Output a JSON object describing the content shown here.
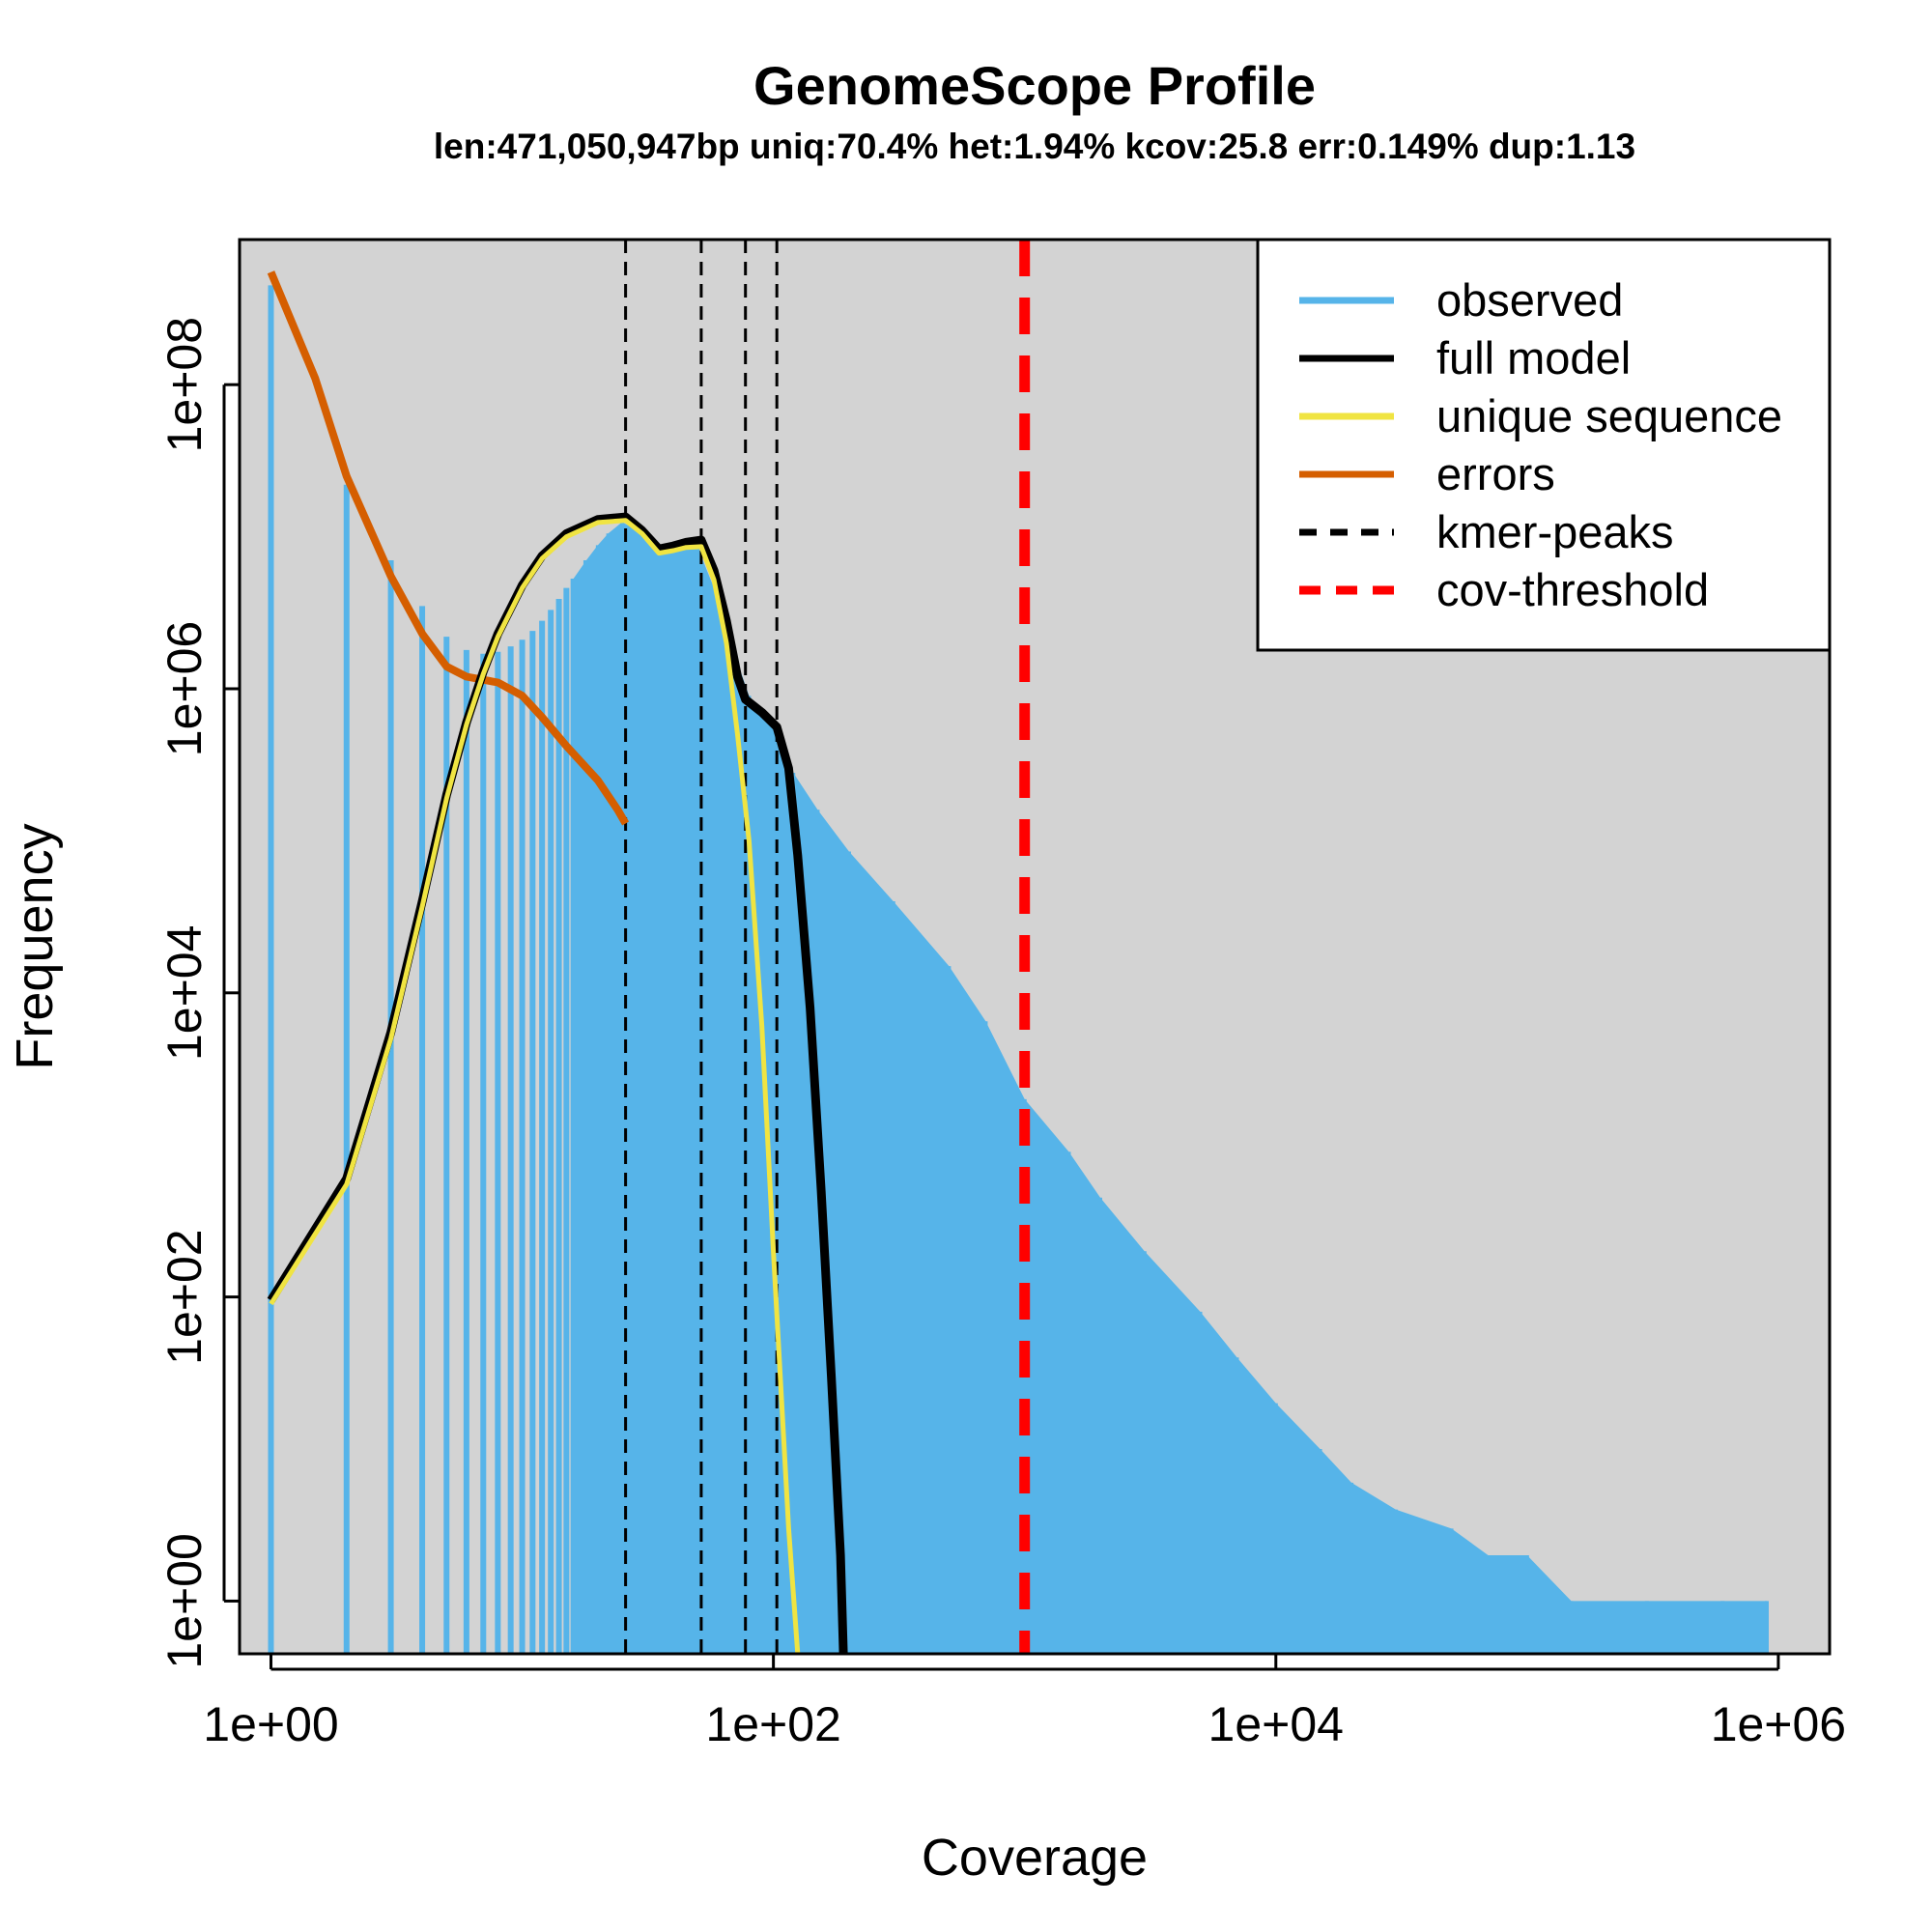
{
  "chart_data": {
    "type": "bar",
    "title": "GenomeScope Profile",
    "subtitle": "len:471,050,947bp uniq:70.4% het:1.94% kcov:25.8 err:0.149% dup:1.13",
    "xlabel": "Coverage",
    "ylabel": "Frequency",
    "x_scale": "log10",
    "y_scale": "log10",
    "xlim": [
      0.75,
      1600000
    ],
    "ylim": [
      0.45,
      900000000
    ],
    "x_ticks": [
      "1e+00",
      "1e+02",
      "1e+04",
      "1e+06"
    ],
    "x_tick_values": [
      1,
      100,
      10000,
      1000000
    ],
    "y_ticks": [
      "1e+00",
      "1e+02",
      "1e+04",
      "1e+06",
      "1e+08"
    ],
    "y_tick_values": [
      1,
      100,
      10000,
      1000000,
      100000000
    ],
    "background": "#d3d3d3",
    "legend_position": "top-right",
    "legend": [
      {
        "label": "observed",
        "color": "#56b4e9",
        "style": "solid"
      },
      {
        "label": "full model",
        "color": "#000000",
        "style": "solid"
      },
      {
        "label": "unique sequence",
        "color": "#f0e442",
        "style": "solid"
      },
      {
        "label": "errors",
        "color": "#d55e00",
        "style": "solid"
      },
      {
        "label": "kmer-peaks",
        "color": "#000000",
        "style": "dashed"
      },
      {
        "label": "cov-threshold",
        "color": "#ff0000",
        "style": "dashed"
      }
    ],
    "observed": {
      "name": "observed",
      "color": "#56b4e9",
      "points": [
        [
          1,
          450000000
        ],
        [
          2,
          22000000
        ],
        [
          3,
          7000000
        ],
        [
          4,
          3500000
        ],
        [
          5,
          2200000
        ],
        [
          6,
          1800000
        ],
        [
          7,
          1700000
        ],
        [
          8,
          1750000
        ],
        [
          9,
          1900000
        ],
        [
          10,
          2100000
        ],
        [
          11,
          2400000
        ],
        [
          12,
          2800000
        ],
        [
          13,
          3300000
        ],
        [
          14,
          3900000
        ],
        [
          15,
          4600000
        ],
        [
          16,
          5300000
        ],
        [
          18,
          7000000
        ],
        [
          20,
          8800000
        ],
        [
          22,
          10500000
        ],
        [
          25,
          12500000
        ],
        [
          30,
          10500000
        ],
        [
          35,
          7600000
        ],
        [
          40,
          8000000
        ],
        [
          50,
          8500000
        ],
        [
          60,
          4000000
        ],
        [
          70,
          1700000
        ],
        [
          80,
          900000
        ],
        [
          90,
          720000
        ],
        [
          100,
          560000
        ],
        [
          120,
          280000
        ],
        [
          150,
          160000
        ],
        [
          200,
          85000
        ],
        [
          300,
          40000
        ],
        [
          500,
          15000
        ],
        [
          700,
          6500
        ],
        [
          1000,
          2000
        ],
        [
          1500,
          900
        ],
        [
          2000,
          450
        ],
        [
          3000,
          200
        ],
        [
          5000,
          80
        ],
        [
          7000,
          40
        ],
        [
          10000,
          20
        ],
        [
          15000,
          10
        ],
        [
          20000,
          6
        ],
        [
          30000,
          4
        ],
        [
          50000,
          3
        ],
        [
          70000,
          2
        ],
        [
          100000,
          2
        ],
        [
          150000,
          1
        ],
        [
          300000,
          1
        ],
        [
          600000,
          1
        ],
        [
          900000,
          1
        ]
      ]
    },
    "full_model": {
      "name": "full model",
      "color": "#000000",
      "points": [
        [
          1,
          95
        ],
        [
          2,
          600
        ],
        [
          3,
          5500
        ],
        [
          4,
          40000
        ],
        [
          5,
          200000
        ],
        [
          6,
          600000
        ],
        [
          7,
          1300000
        ],
        [
          8,
          2300000
        ],
        [
          10,
          4800000
        ],
        [
          12,
          7500000
        ],
        [
          15,
          10500000
        ],
        [
          20,
          13000000
        ],
        [
          25.8,
          13500000
        ],
        [
          30,
          11000000
        ],
        [
          35,
          8300000
        ],
        [
          40,
          8700000
        ],
        [
          45,
          9200000
        ],
        [
          51.6,
          9500000
        ],
        [
          58,
          6000000
        ],
        [
          65,
          2800000
        ],
        [
          72,
          1200000
        ],
        [
          77.4,
          850000
        ],
        [
          90,
          700000
        ],
        [
          103.2,
          560000
        ],
        [
          115,
          300000
        ],
        [
          125,
          80000
        ],
        [
          140,
          8000
        ],
        [
          155,
          500
        ],
        [
          170,
          30
        ],
        [
          185,
          2
        ],
        [
          190,
          0.45
        ]
      ]
    },
    "unique_sequence": {
      "name": "unique sequence",
      "color": "#f0e442",
      "points": [
        [
          1,
          90
        ],
        [
          2,
          550
        ],
        [
          3,
          5000
        ],
        [
          4,
          37000
        ],
        [
          5,
          190000
        ],
        [
          6,
          580000
        ],
        [
          7,
          1250000
        ],
        [
          8,
          2200000
        ],
        [
          10,
          4600000
        ],
        [
          12,
          7200000
        ],
        [
          15,
          10000000
        ],
        [
          20,
          12400000
        ],
        [
          25.8,
          12800000
        ],
        [
          30,
          10500000
        ],
        [
          35,
          7800000
        ],
        [
          40,
          8100000
        ],
        [
          45,
          8500000
        ],
        [
          51.6,
          8600000
        ],
        [
          58,
          5200000
        ],
        [
          65,
          2000000
        ],
        [
          72,
          500000
        ],
        [
          80,
          100000
        ],
        [
          90,
          6000
        ],
        [
          100,
          200
        ],
        [
          115,
          3
        ],
        [
          125,
          0.45
        ]
      ]
    },
    "errors": {
      "name": "errors",
      "color": "#d55e00",
      "points": [
        [
          1,
          550000000
        ],
        [
          1.5,
          110000000
        ],
        [
          2,
          25000000
        ],
        [
          3,
          5500000
        ],
        [
          4,
          2300000
        ],
        [
          5,
          1400000
        ],
        [
          6,
          1200000
        ],
        [
          8,
          1100000
        ],
        [
          10,
          900000
        ],
        [
          12,
          650000
        ],
        [
          15,
          420000
        ],
        [
          20,
          250000
        ],
        [
          24,
          160000
        ],
        [
          25.8,
          130000
        ]
      ]
    },
    "kmer_peaks": {
      "name": "kmer-peaks",
      "color": "#000000",
      "values": [
        25.8,
        51.6,
        77.4,
        103.2
      ]
    },
    "cov_threshold": {
      "name": "cov-threshold",
      "color": "#ff0000",
      "value": 1000
    }
  }
}
